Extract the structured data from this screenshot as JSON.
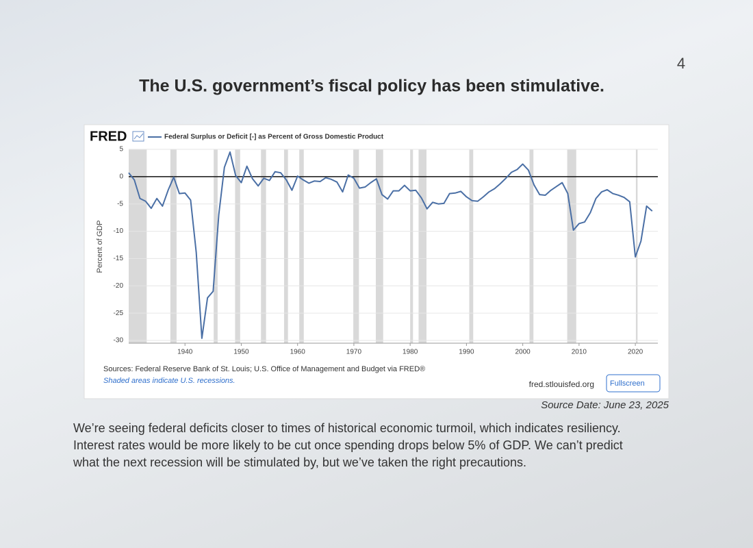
{
  "slide": {
    "number": "4",
    "title": "The U.S. government’s fiscal policy has been stimulative."
  },
  "source_date": "Source Date: June 23, 2025",
  "body": [
    "We’re seeing federal deficits closer to times of historical economic turmoil, which indicates resiliency.",
    "Interest rates would be more likely to be cut once spending drops below 5% of GDP.  We can’t predict",
    "what the next recession will be stimulated by, but we’ve taken the right precautions."
  ],
  "chart_data": {
    "type": "line",
    "logo": "FRED",
    "y_label": "Percent of GDP",
    "sources": "Sources: Federal Reserve Bank of St. Louis; U.S. Office of Management and Budget via FRED®",
    "note": "Shaded areas indicate U.S. recessions.",
    "site": "fred.stlouisfed.org",
    "button": "Fullscreen",
    "x": [
      1930,
      1931,
      1932,
      1933,
      1934,
      1935,
      1936,
      1937,
      1938,
      1939,
      1940,
      1941,
      1942,
      1943,
      1944,
      1945,
      1946,
      1947,
      1948,
      1949,
      1950,
      1951,
      1952,
      1953,
      1954,
      1955,
      1956,
      1957,
      1958,
      1959,
      1960,
      1961,
      1962,
      1963,
      1964,
      1965,
      1966,
      1967,
      1968,
      1969,
      1970,
      1971,
      1972,
      1973,
      1974,
      1975,
      1976,
      1977,
      1978,
      1979,
      1980,
      1981,
      1982,
      1983,
      1984,
      1985,
      1986,
      1987,
      1988,
      1989,
      1990,
      1991,
      1992,
      1993,
      1994,
      1995,
      1996,
      1997,
      1998,
      1999,
      2000,
      2001,
      2002,
      2003,
      2004,
      2005,
      2006,
      2007,
      2008,
      2009,
      2010,
      2011,
      2012,
      2013,
      2014,
      2015,
      2016,
      2017,
      2018,
      2019,
      2020,
      2021,
      2022,
      2023
    ],
    "series": [
      {
        "name": "Federal Surplus or Deficit [-] as Percent of Gross Domestic Product",
        "color": "#4a6fa5",
        "values": [
          0.7,
          -0.6,
          -4.0,
          -4.5,
          -5.8,
          -4.0,
          -5.4,
          -2.5,
          -0.1,
          -3.1,
          -3.0,
          -4.3,
          -13.9,
          -29.6,
          -22.2,
          -21.0,
          -7.0,
          1.7,
          4.5,
          0.2,
          -1.1,
          1.9,
          -0.4,
          -1.7,
          -0.3,
          -0.7,
          0.9,
          0.7,
          -0.6,
          -2.5,
          0.1,
          -0.6,
          -1.2,
          -0.8,
          -0.9,
          -0.2,
          -0.5,
          -1.0,
          -2.8,
          0.3,
          -0.3,
          -2.1,
          -1.9,
          -1.1,
          -0.4,
          -3.3,
          -4.1,
          -2.6,
          -2.6,
          -1.6,
          -2.6,
          -2.5,
          -3.9,
          -5.9,
          -4.7,
          -5.0,
          -4.9,
          -3.1,
          -3.0,
          -2.7,
          -3.7,
          -4.4,
          -4.5,
          -3.7,
          -2.8,
          -2.2,
          -1.3,
          -0.3,
          0.8,
          1.3,
          2.3,
          1.2,
          -1.5,
          -3.3,
          -3.4,
          -2.5,
          -1.8,
          -1.1,
          -3.1,
          -9.8,
          -8.6,
          -8.3,
          -6.6,
          -4.0,
          -2.8,
          -2.4,
          -3.1,
          -3.4,
          -3.8,
          -4.6,
          -14.7,
          -11.8,
          -5.4,
          -6.3
        ]
      }
    ],
    "recessions": [
      [
        1930,
        1933.2
      ],
      [
        1937.4,
        1938.5
      ],
      [
        1945.1,
        1945.8
      ],
      [
        1948.9,
        1949.8
      ],
      [
        1953.5,
        1954.4
      ],
      [
        1957.6,
        1958.3
      ],
      [
        1960.3,
        1961.1
      ],
      [
        1969.9,
        1970.9
      ],
      [
        1973.9,
        1975.2
      ],
      [
        1980.0,
        1980.5
      ],
      [
        1981.5,
        1982.9
      ],
      [
        1990.5,
        1991.2
      ],
      [
        2001.2,
        2001.9
      ],
      [
        2007.9,
        2009.5
      ],
      [
        2020.1,
        2020.4
      ]
    ],
    "recession_color": "#d9d9d9",
    "xlim": [
      1930,
      2024
    ],
    "ylim": [
      -30.5,
      5
    ],
    "xticks": [
      1940,
      1950,
      1960,
      1970,
      1980,
      1990,
      2000,
      2010,
      2020
    ],
    "yticks": [
      5,
      0,
      -5,
      -10,
      -15,
      -20,
      -25,
      -30
    ],
    "grid": true
  }
}
